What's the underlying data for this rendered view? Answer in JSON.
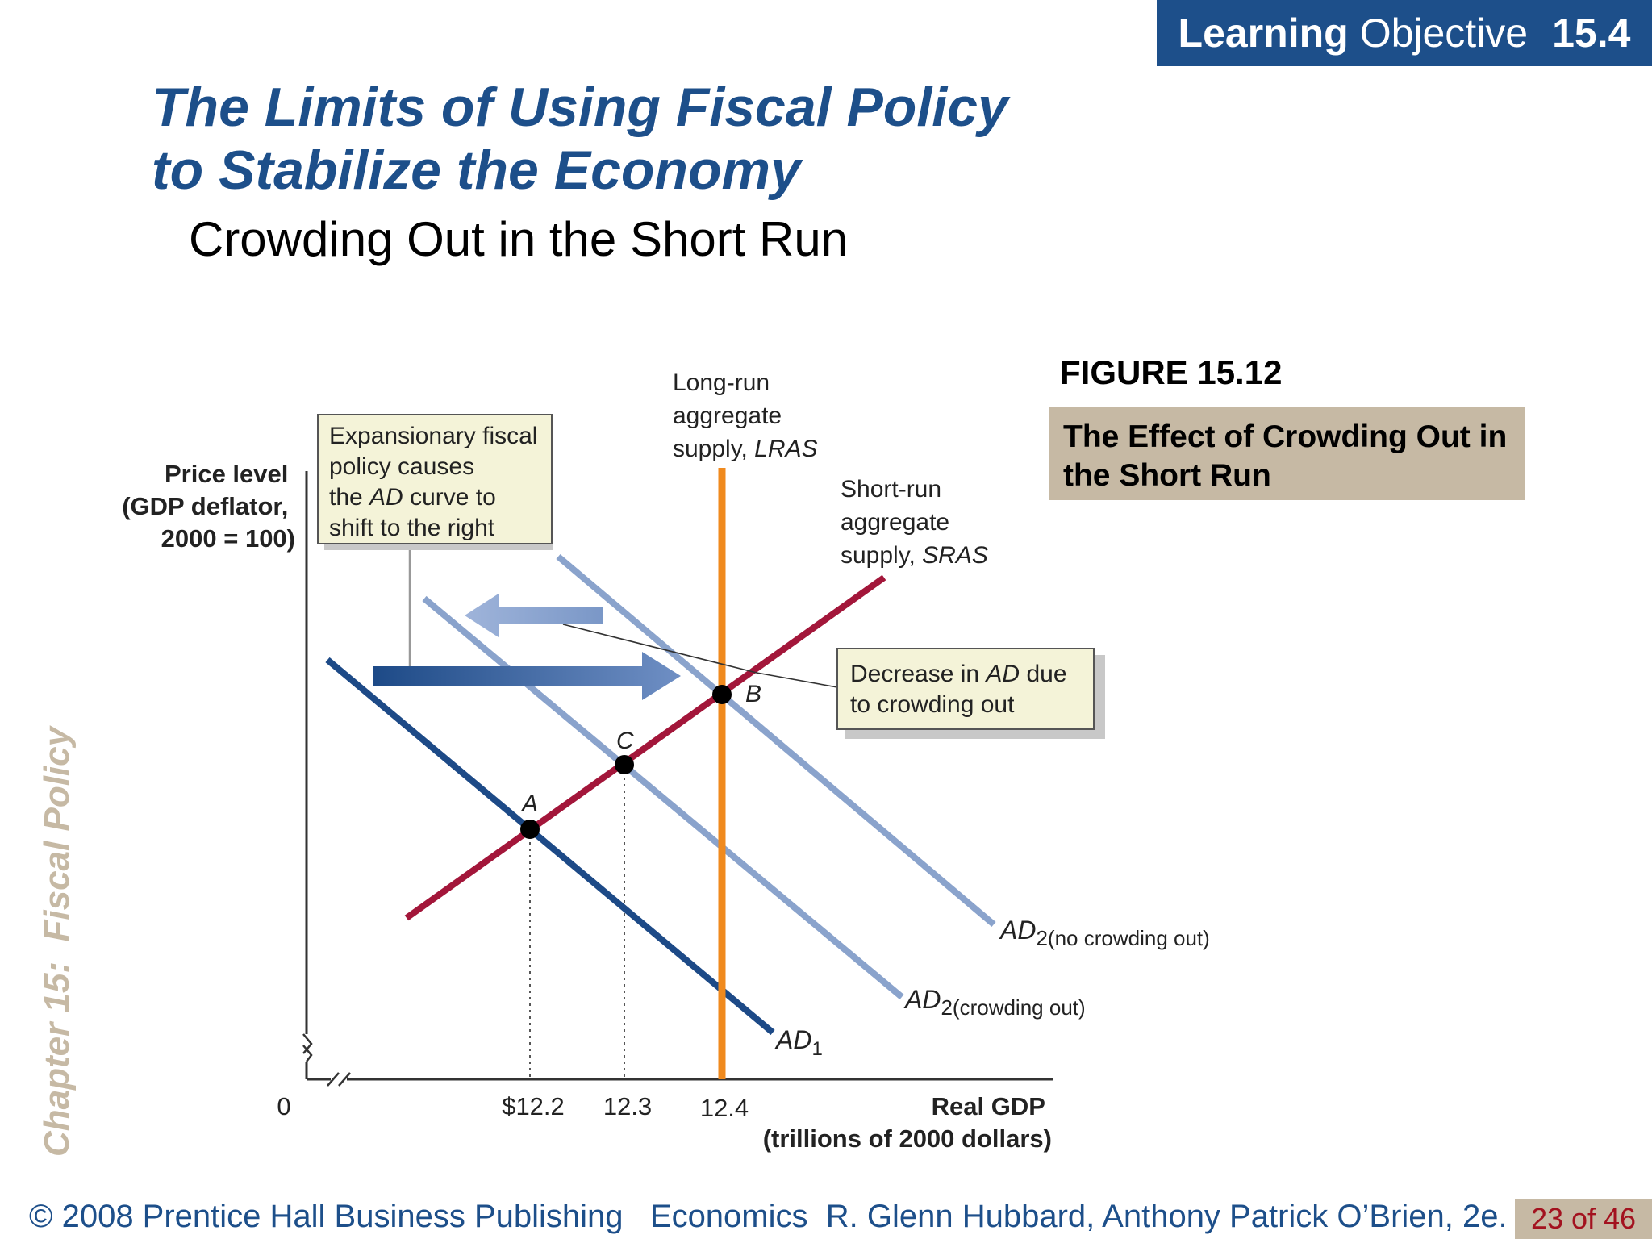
{
  "header": {
    "badge_bold": "Learning",
    "badge_text": "Objective",
    "badge_number": "15.4",
    "title_line1": "The Limits of Using Fiscal Policy",
    "title_line2": "to Stabilize the Economy",
    "subtitle": "Crowding Out in the Short Run"
  },
  "figure": {
    "number": "FIGURE 15.12",
    "caption": "The Effect of Crowding Out in the Short Run"
  },
  "diagram": {
    "y_axis_label": [
      "Price level",
      "(GDP deflator,",
      "2000 = 100)"
    ],
    "x_axis_label": [
      "Real GDP",
      "(trillions of 2000 dollars)"
    ],
    "origin_label": "0",
    "x_ticks": [
      "$12.2",
      "12.3",
      "12.4"
    ],
    "lras_label": [
      "Long-run",
      "aggregate",
      "supply, "
    ],
    "lras_abbrev": "LRAS",
    "sras_label": [
      "Short-run",
      "aggregate",
      "supply, "
    ],
    "sras_abbrev": "SRAS",
    "ad_abbrev": "AD",
    "ad1_sub": "1",
    "ad2_sub": "2",
    "ad2_nco_note": "(no crowding out)",
    "ad2_co_note": "(crowding out)",
    "point_a": "A",
    "point_b": "B",
    "point_c": "C",
    "callout_expansion": {
      "line1": "Expansionary fiscal",
      "line2": "policy causes",
      "line3_pre": "the ",
      "line3_post": " curve to",
      "line4": "shift to the right"
    },
    "callout_crowding": {
      "line1_pre": "Decrease in ",
      "line1_post": " due",
      "line2": "to crowding out"
    },
    "colors": {
      "lras": "#f08a1e",
      "sras": "#a3163a",
      "ad1": "#1d4a87",
      "ad2": "#7f9ac4",
      "callout_bg": "#f4f3d8"
    }
  },
  "side_label": "Chapter 15:  Fiscal Policy",
  "footer": {
    "copyright": "© 2008 Prentice Hall Business Publishing   Economics  R. Glenn Hubbard, Anthony Patrick O’Brien, 2e.",
    "page": "23 of 46"
  }
}
